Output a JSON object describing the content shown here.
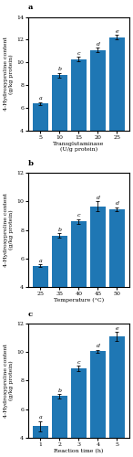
{
  "chart_data": [
    {
      "type": "bar",
      "title": "a",
      "categories": [
        "5",
        "10",
        "15",
        "20",
        "25"
      ],
      "values": [
        6.4,
        8.9,
        10.3,
        11.1,
        12.2
      ],
      "errors": [
        0.15,
        0.2,
        0.2,
        0.2,
        0.2
      ],
      "annotations": [
        "a",
        "b",
        "c",
        "d",
        "e"
      ],
      "xlabel": "Transglutaminase\n(U/g protein)",
      "ylabel": "4-Hydroxyproline content\n(g/kg protein)",
      "ylim": [
        4,
        14
      ],
      "yticks": [
        4,
        6,
        8,
        10,
        12,
        14
      ]
    },
    {
      "type": "bar",
      "title": "b",
      "categories": [
        "25",
        "35",
        "40",
        "45",
        "50"
      ],
      "values": [
        5.5,
        7.6,
        8.6,
        9.65,
        9.45
      ],
      "errors": [
        0.1,
        0.15,
        0.15,
        0.35,
        0.15
      ],
      "annotations": [
        "a",
        "b",
        "c",
        "d",
        "d"
      ],
      "xlabel": "Temperature (°C)",
      "ylabel": "4-Hydroxyproline content\n(g/kg protein)",
      "ylim": [
        4,
        12
      ],
      "yticks": [
        4,
        6,
        8,
        10,
        12
      ]
    },
    {
      "type": "bar",
      "title": "c",
      "categories": [
        "1",
        "2",
        "3",
        "4",
        "5"
      ],
      "values": [
        4.8,
        6.9,
        8.85,
        10.05,
        11.1
      ],
      "errors": [
        0.35,
        0.15,
        0.2,
        0.1,
        0.3
      ],
      "annotations": [
        "a",
        "b",
        "c",
        "d",
        "e"
      ],
      "xlabel": "Reaction time (h)",
      "ylabel": "4-Hydroxyproline content\n(g/kg protein)",
      "ylim": [
        4,
        12
      ],
      "yticks": [
        4,
        6,
        8,
        10,
        12
      ]
    }
  ]
}
